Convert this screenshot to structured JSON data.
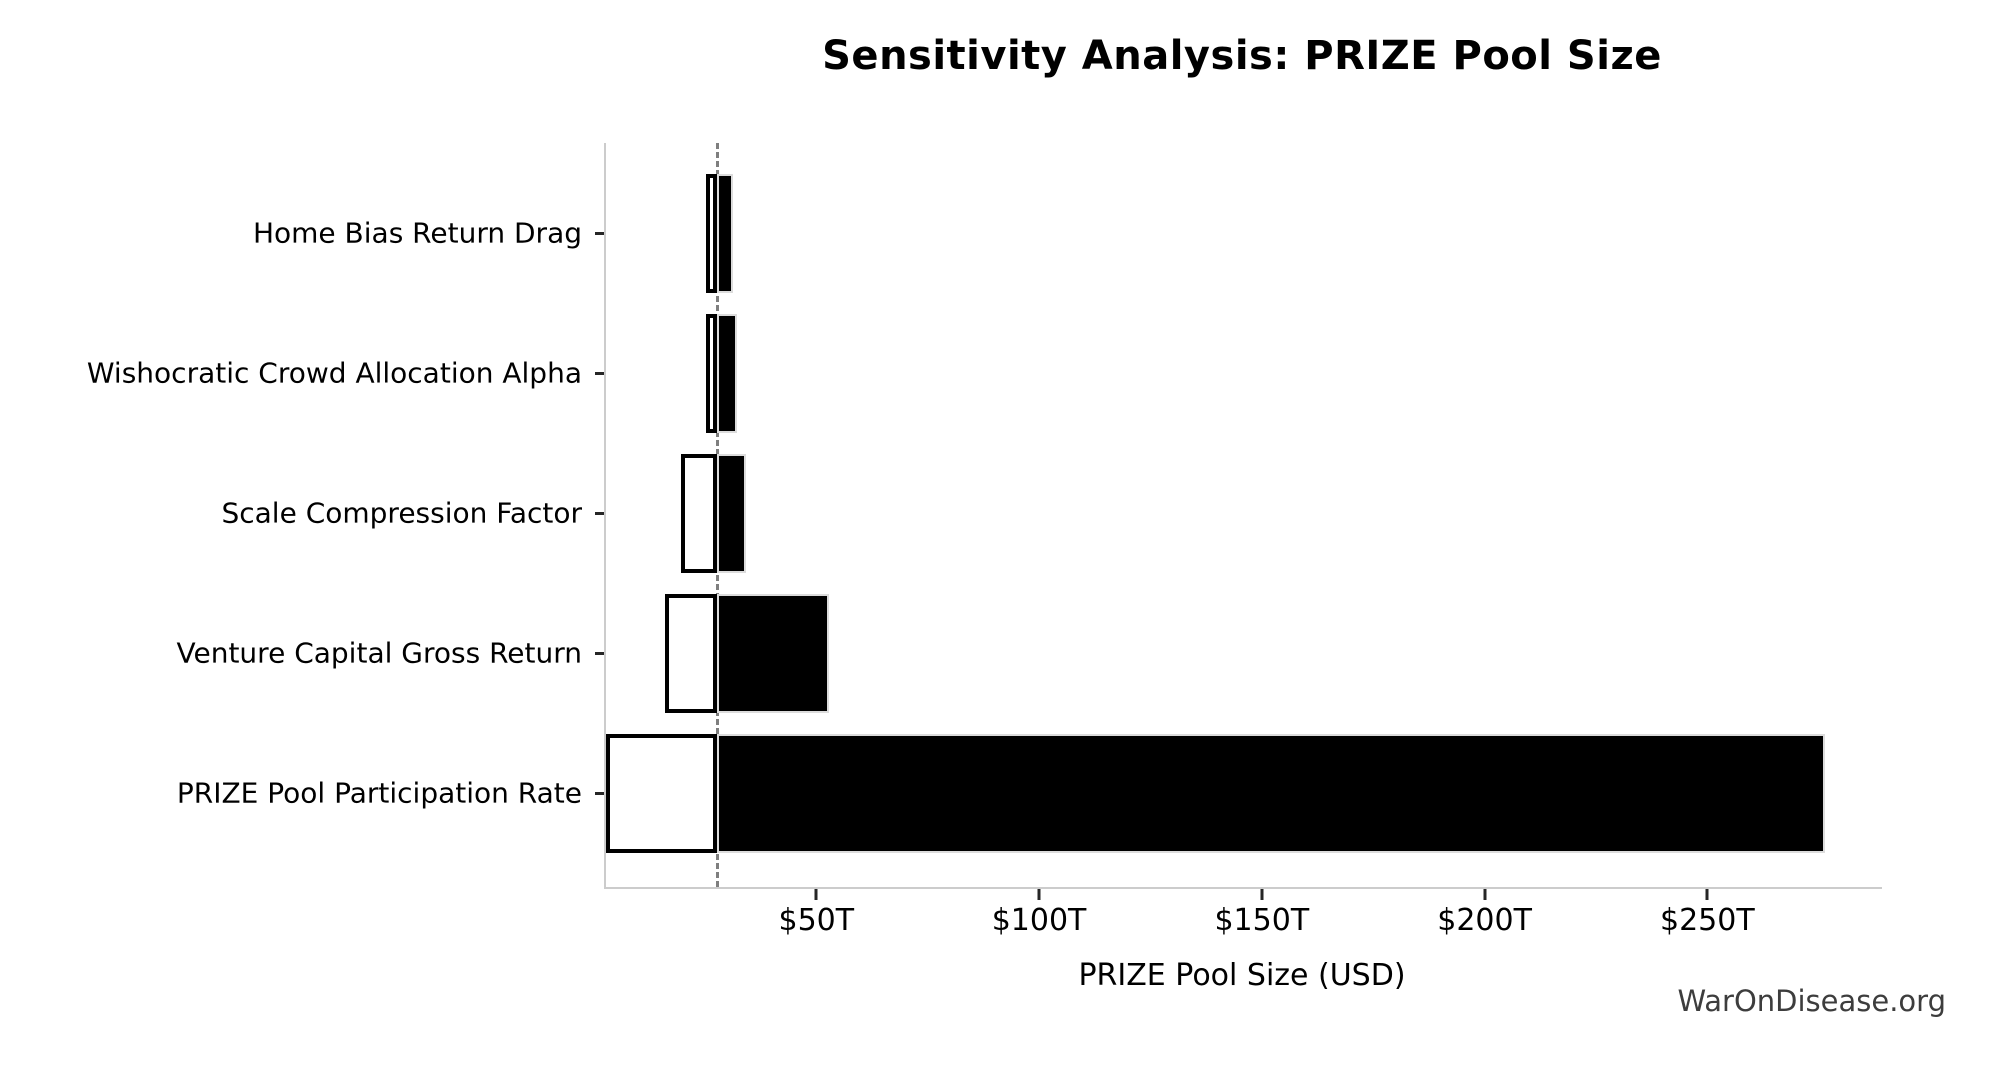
{
  "footer": {
    "watermark": "WarOnDisease.org"
  },
  "chart_data": {
    "type": "bar",
    "subtype": "tornado-horizontal",
    "title": "Sensitivity Analysis: PRIZE Pool Size",
    "xlabel": "PRIZE Pool Size (USD)",
    "ylabel": "",
    "unit": "trillion USD",
    "xlim": [
      2.8,
      289.2
    ],
    "baseline": 27.8,
    "grid": false,
    "legend": null,
    "x_ticks": [
      {
        "value": 50,
        "label": "$50T"
      },
      {
        "value": 100,
        "label": "$100T"
      },
      {
        "value": 150,
        "label": "$150T"
      },
      {
        "value": 200,
        "label": "$200T"
      },
      {
        "value": 250,
        "label": "$250T"
      }
    ],
    "categories": [
      "Home Bias Return Drag",
      "Wishocratic Crowd Allocation Alpha",
      "Scale Compression Factor",
      "Venture Capital Gross Return",
      "PRIZE Pool Participation Rate"
    ],
    "rows": [
      {
        "label": "Home Bias Return Drag",
        "low": 25.3,
        "high": 31.2
      },
      {
        "label": "Wishocratic Crowd Allocation Alpha",
        "low": 25.2,
        "high": 32.1
      },
      {
        "label": "Scale Compression Factor",
        "low": 19.6,
        "high": 34.2
      },
      {
        "label": "Venture Capital Gross Return",
        "low": 16.1,
        "high": 52.8
      },
      {
        "label": "PRIZE Pool Participation Rate",
        "low": 2.8,
        "high": 276.4
      }
    ],
    "colors": {
      "bar_high_fill": "#000000",
      "bar_high_outline": "#dcdcdc",
      "bar_low_fill": "#ffffff",
      "bar_low_edge": "#000000",
      "baseline_line": "#7f7f7f",
      "spine": "#cccccc",
      "tick": "#262626",
      "text": "#000000",
      "watermark": "#3d3d3d"
    }
  }
}
